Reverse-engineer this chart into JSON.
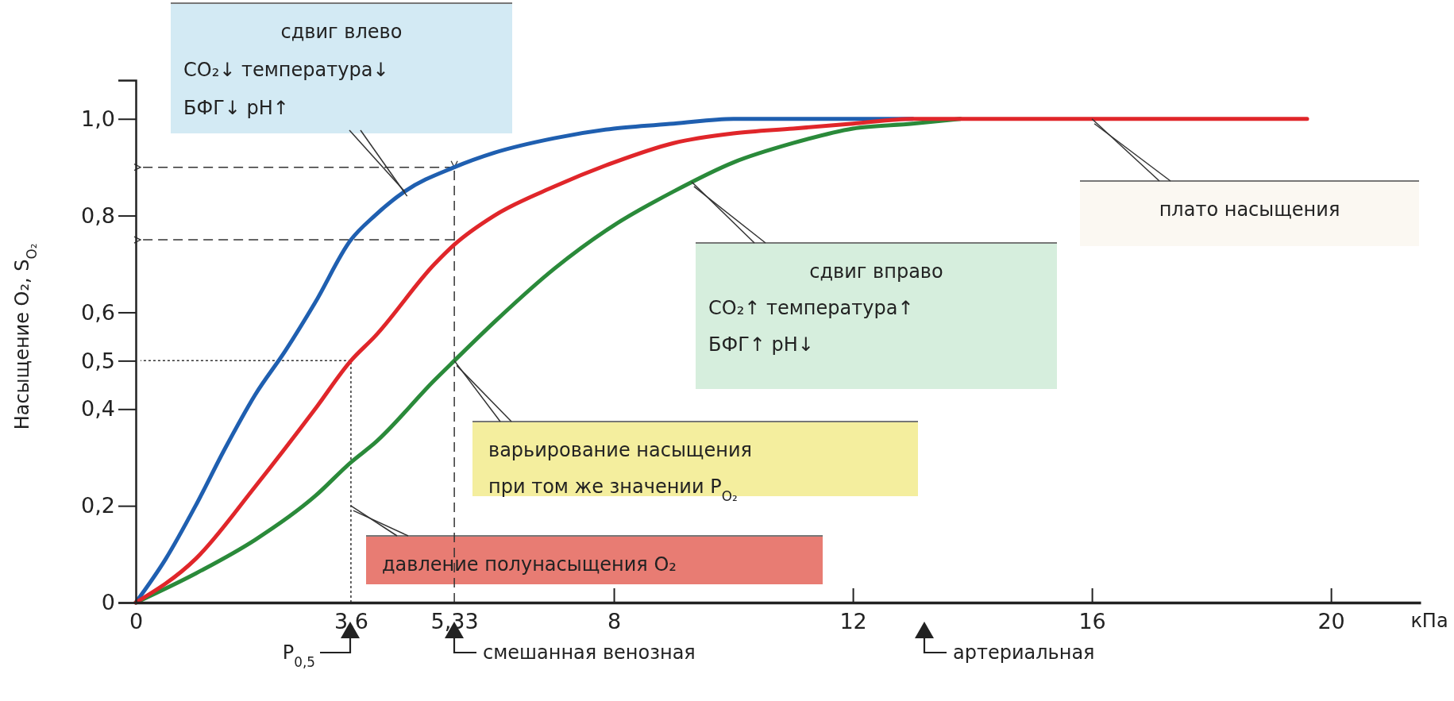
{
  "chart_data": {
    "type": "line",
    "xlabel": "кПа",
    "ylabel": "Насыщение O₂, S$_{O₂}$",
    "xlim": [
      0,
      21.5
    ],
    "ylim": [
      0,
      1.08
    ],
    "xticks": [
      0,
      {
        "value": 3.6,
        "label": "3,6"
      },
      {
        "value": 5.33,
        "label": "5,33"
      },
      8,
      12,
      16,
      20
    ],
    "yticks": [
      0,
      {
        "value": 0.2,
        "label": "0,2"
      },
      {
        "value": 0.4,
        "label": "0,4"
      },
      {
        "value": 0.5,
        "label": "0,5"
      },
      {
        "value": 0.6,
        "label": "0,6"
      },
      {
        "value": 0.8,
        "label": "0,8"
      },
      {
        "value": 1.0,
        "label": "1,0"
      }
    ],
    "marker": "none",
    "line_style": "solid",
    "series": [
      {
        "color": "#1f5fb0",
        "x": [
          0,
          0.5,
          1,
          1.5,
          2,
          2.5,
          3,
          3.6,
          4,
          4.5,
          5.33,
          6,
          7,
          8,
          9,
          10,
          11,
          12,
          13
        ],
        "values": [
          0,
          0.09,
          0.2,
          0.32,
          0.43,
          0.52,
          0.62,
          0.75,
          0.8,
          0.85,
          0.9,
          0.93,
          0.96,
          0.98,
          0.99,
          1.0,
          1.0,
          1.0,
          1.0
        ]
      },
      {
        "color": "#2a8a3a",
        "x": [
          0,
          1,
          2,
          3,
          3.6,
          4,
          5,
          5.33,
          6,
          7,
          8,
          9,
          10,
          11,
          12,
          13,
          13.8
        ],
        "values": [
          0,
          0.06,
          0.13,
          0.22,
          0.29,
          0.33,
          0.46,
          0.5,
          0.58,
          0.69,
          0.78,
          0.85,
          0.91,
          0.95,
          0.98,
          0.99,
          1.0
        ]
      },
      {
        "color": "#e0262a",
        "x": [
          0,
          1,
          2,
          3,
          3.6,
          4,
          5,
          5.33,
          6,
          7,
          8,
          9,
          10,
          11,
          12,
          13,
          14,
          16,
          18,
          19.6
        ],
        "values": [
          0,
          0.09,
          0.24,
          0.4,
          0.5,
          0.55,
          0.7,
          0.74,
          0.8,
          0.86,
          0.91,
          0.95,
          0.97,
          0.98,
          0.99,
          1.0,
          1.0,
          1.0,
          1.0,
          1.0
        ]
      }
    ],
    "ref_lines": [
      {
        "axis": "x",
        "value": 5.33,
        "line_style": "dashed"
      },
      {
        "axis": "x",
        "value": 3.6,
        "line_style": "dotted"
      },
      {
        "axis": "y",
        "value": 0.9,
        "line_style": "dashed"
      },
      {
        "axis": "y",
        "value": 0.75,
        "line_style": "dashed"
      },
      {
        "axis": "y",
        "value": 0.5,
        "line_style": "dotted"
      }
    ],
    "annotations": [
      {
        "text": "сдвиг влево\nCO₂↓  температура↓\nБФГ↓  pH↑",
        "x": 4.5,
        "y": 0.85
      },
      {
        "text": "сдвиг вправо\nCO₂↑  температура↑\nБФГ↑  pH↓",
        "x": 9.3,
        "y": 0.87
      },
      {
        "text": "плато насыщения",
        "x": 16,
        "y": 1.0
      },
      {
        "text": "варьирование насыщения\nпри том же значении  P$_{O₂}$",
        "x": 5.33,
        "y": 0.5
      },
      {
        "text": "давление полунасыщения O₂",
        "x": 3.6,
        "y": 0.2
      },
      "P$_{0,5}$",
      "смешанная венозная",
      "артериальная"
    ]
  }
}
